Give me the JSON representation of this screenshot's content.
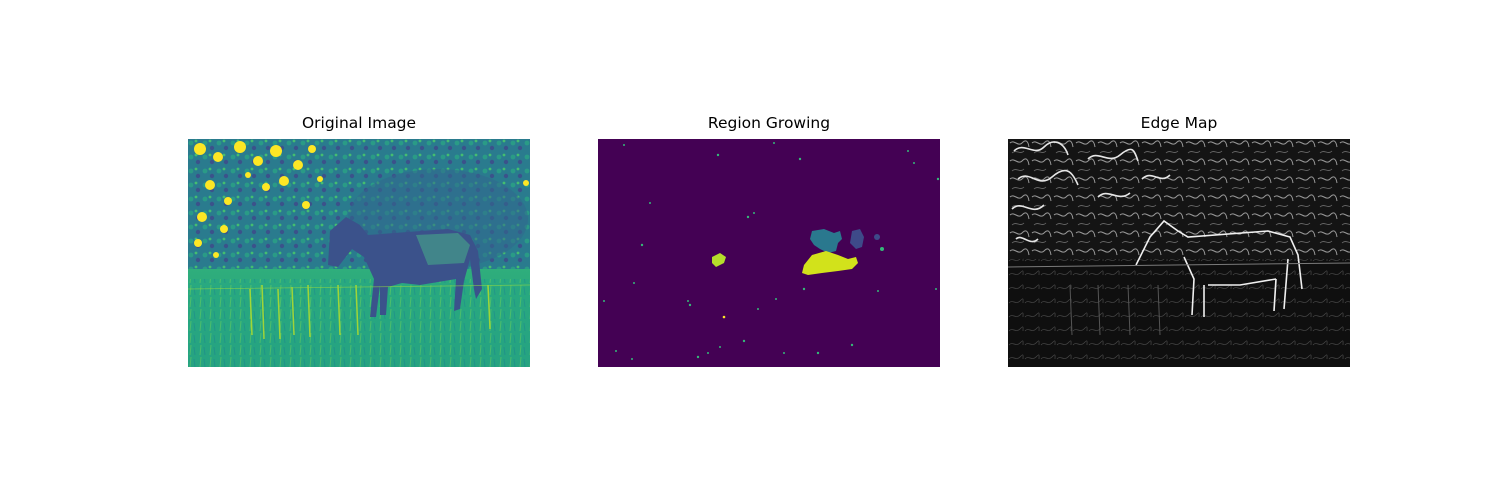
{
  "figure": {
    "panels": [
      {
        "title": "Original Image",
        "colormap": "viridis",
        "content": "grayscale photo of a horse grazing in a field, rendered in viridis"
      },
      {
        "title": "Region Growing",
        "colormap": "viridis",
        "content": "segmentation label map, mostly background with a few grown regions"
      },
      {
        "title": "Edge Map",
        "colormap": "gray",
        "content": "edge magnitude map of the horse scene"
      }
    ]
  },
  "colors": {
    "viridis_dark": "#440154",
    "viridis_blue": "#31688e",
    "viridis_teal": "#21908d",
    "viridis_green": "#35b779",
    "viridis_yellow": "#fde725",
    "edge_bg": "#111111",
    "edge_line": "#e6e6e6"
  }
}
